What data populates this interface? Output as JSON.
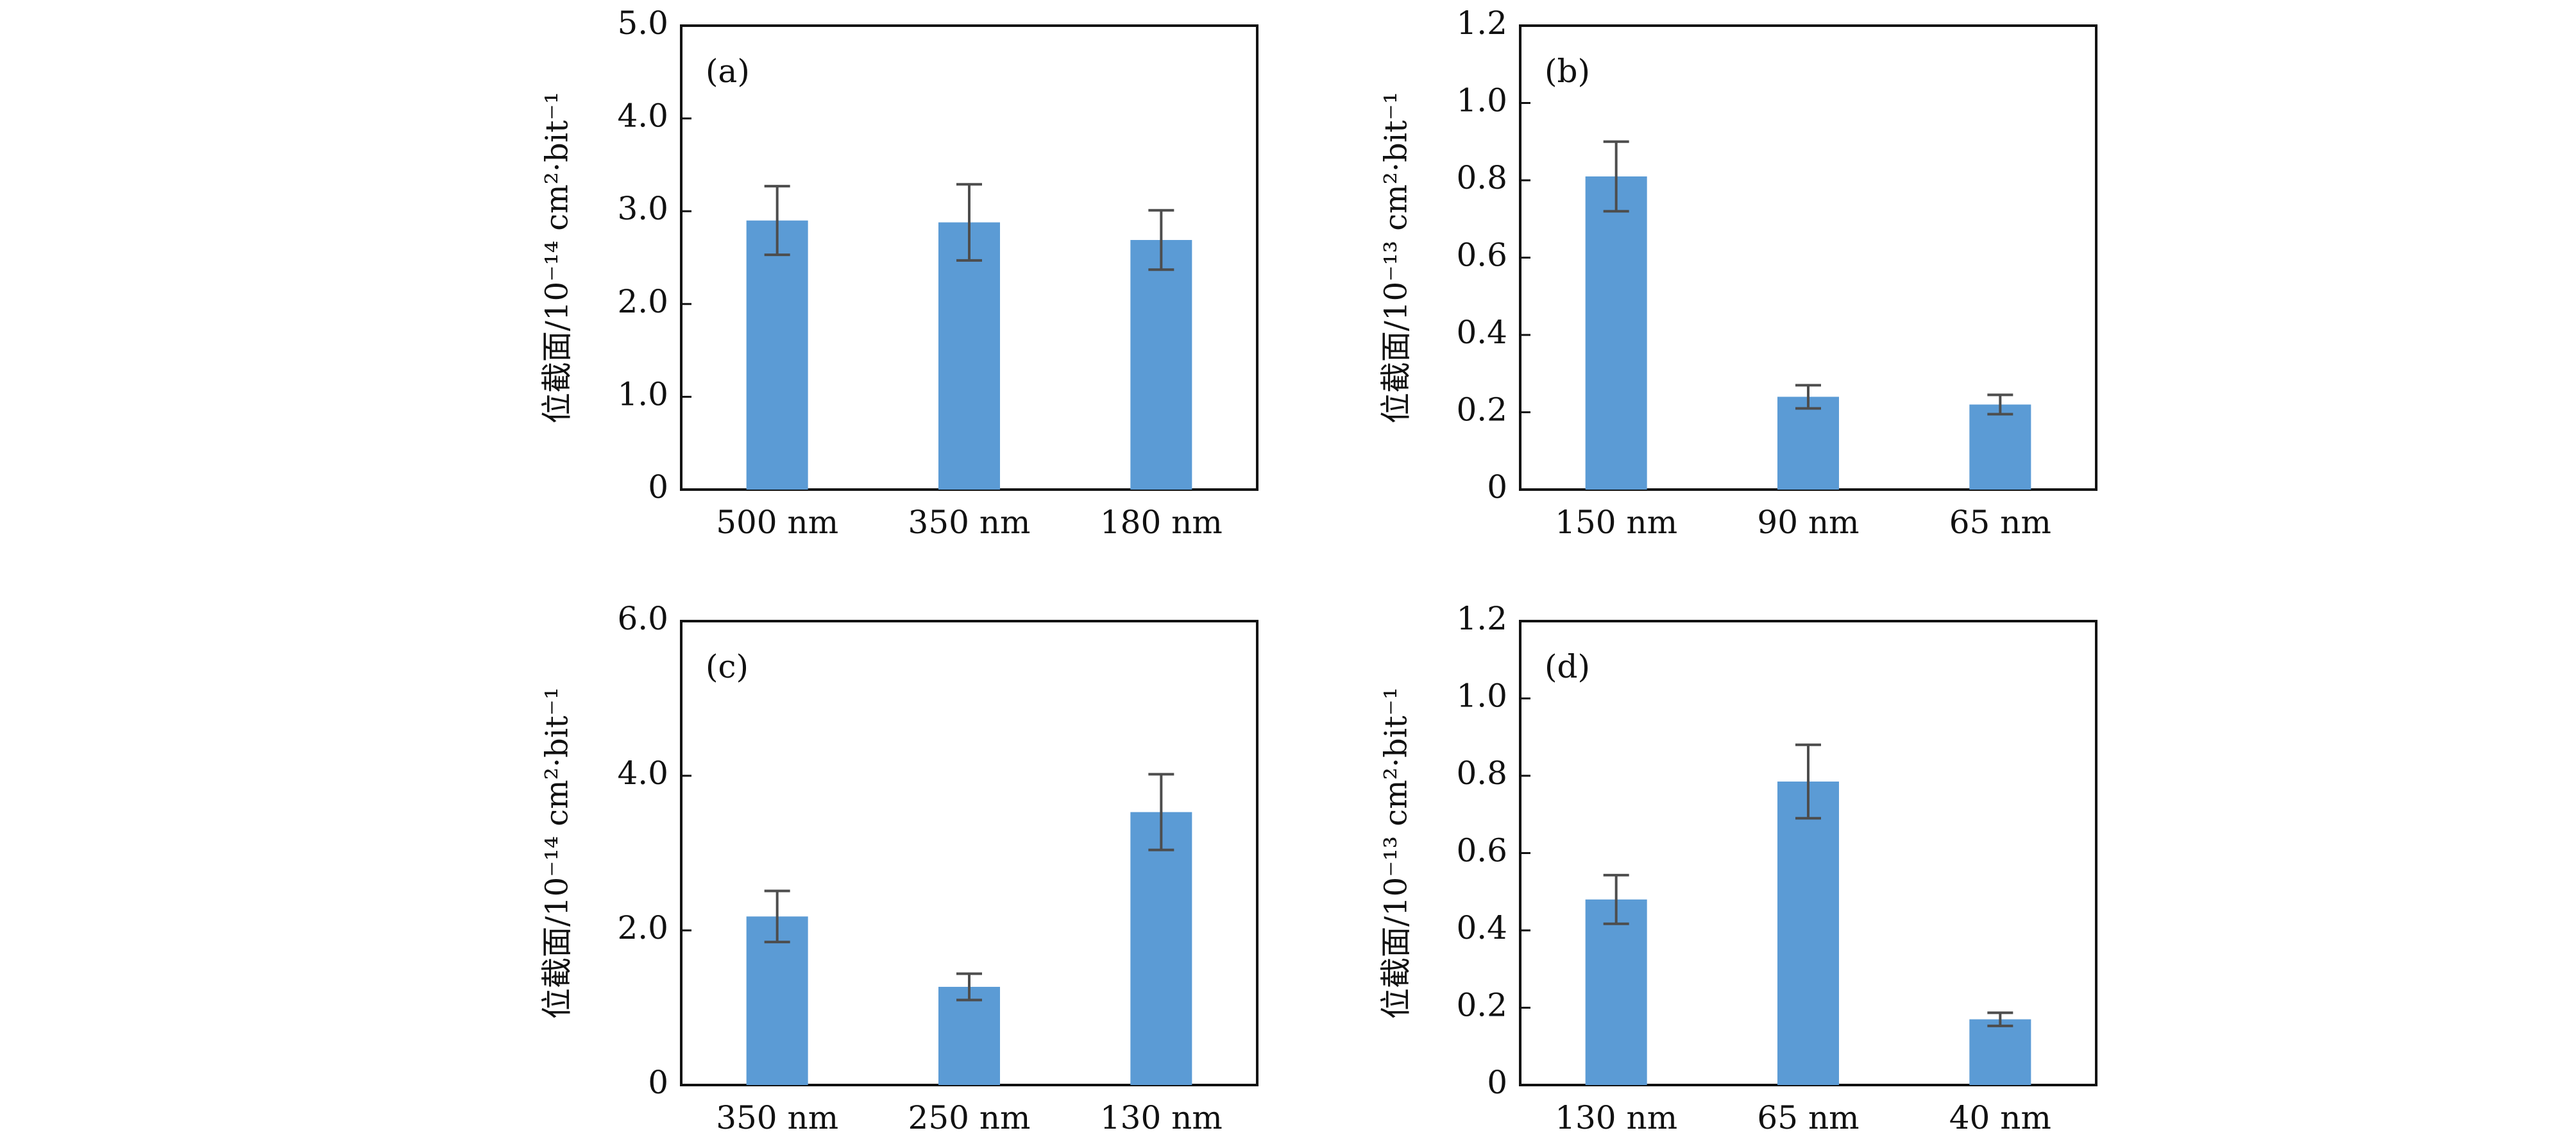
{
  "chart_data": [
    {
      "type": "bar",
      "panel_label": "(a)",
      "categories": [
        "500 nm",
        "350 nm",
        "180 nm"
      ],
      "values": [
        2.9,
        2.88,
        2.69
      ],
      "errors": [
        0.37,
        0.41,
        0.32
      ],
      "ylabel": "位截面/10⁻¹⁴ cm²·bit⁻¹",
      "ylim": [
        0,
        5.0
      ],
      "ytick_values": [
        0,
        1,
        2,
        3,
        4,
        5
      ],
      "ytick_labels": [
        "0",
        "1.0",
        "2.0",
        "3.0",
        "4.0",
        "5.0"
      ],
      "bar_color": "#5b9bd5",
      "error_color": "#4d4d4d"
    },
    {
      "type": "bar",
      "panel_label": "(b)",
      "categories": [
        "150 nm",
        "90 nm",
        "65 nm"
      ],
      "values": [
        0.81,
        0.24,
        0.22
      ],
      "errors": [
        0.09,
        0.03,
        0.025
      ],
      "ylabel": "位截面/10⁻¹³ cm²·bit⁻¹",
      "ylim": [
        0,
        1.2
      ],
      "ytick_values": [
        0,
        0.2,
        0.4,
        0.6,
        0.8,
        1.0,
        1.2
      ],
      "ytick_labels": [
        "0",
        "0.2",
        "0.4",
        "0.6",
        "0.8",
        "1.0",
        "1.2"
      ],
      "bar_color": "#5b9bd5",
      "error_color": "#4d4d4d"
    },
    {
      "type": "bar",
      "panel_label": "(c)",
      "categories": [
        "350 nm",
        "250 nm",
        "130 nm"
      ],
      "values": [
        2.18,
        1.27,
        3.53
      ],
      "errors": [
        0.33,
        0.17,
        0.49
      ],
      "ylabel": "位截面/10⁻¹⁴ cm²·bit⁻¹",
      "ylim": [
        0,
        6.0
      ],
      "ytick_values": [
        0,
        2,
        4,
        6
      ],
      "ytick_labels": [
        "0",
        "2.0",
        "4.0",
        "6.0"
      ],
      "bar_color": "#5b9bd5",
      "error_color": "#4d4d4d"
    },
    {
      "type": "bar",
      "panel_label": "(d)",
      "categories": [
        "130 nm",
        "65 nm",
        "40 nm"
      ],
      "values": [
        0.48,
        0.785,
        0.17
      ],
      "errors": [
        0.063,
        0.095,
        0.017
      ],
      "ylabel": "位截面/10⁻¹³ cm²·bit⁻¹",
      "ylim": [
        0,
        1.2
      ],
      "ytick_values": [
        0,
        0.2,
        0.4,
        0.6,
        0.8,
        1.0,
        1.2
      ],
      "ytick_labels": [
        "0",
        "0.2",
        "0.4",
        "0.6",
        "0.8",
        "1.0",
        "1.2"
      ],
      "bar_color": "#5b9bd5",
      "error_color": "#4d4d4d"
    }
  ]
}
